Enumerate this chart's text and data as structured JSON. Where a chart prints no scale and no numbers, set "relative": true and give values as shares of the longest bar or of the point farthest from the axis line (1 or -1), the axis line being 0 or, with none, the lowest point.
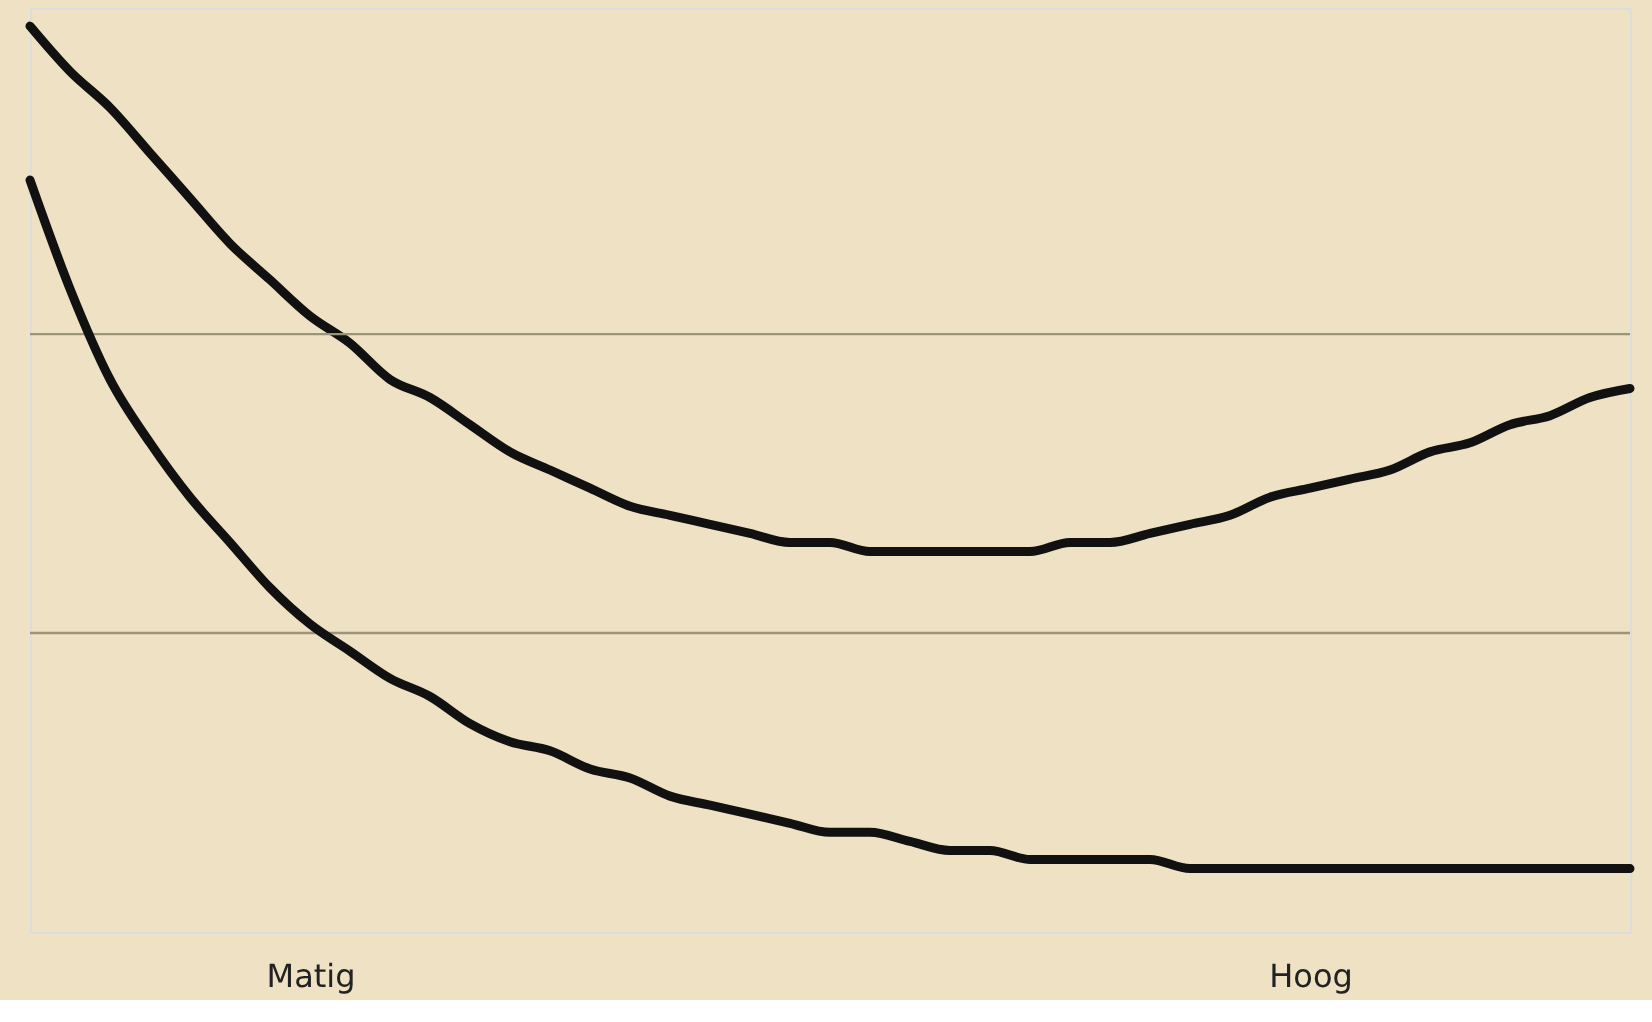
{
  "chart_data": {
    "type": "line",
    "relative": true,
    "marker": "none",
    "line_style": "solid",
    "ref_lines": [
      {
        "axis": "y",
        "value": 0.66,
        "color": "#9a9478"
      },
      {
        "axis": "y",
        "value": 0.33,
        "color": "#9a9478"
      }
    ],
    "categories": [
      null,
      null,
      null,
      null,
      null,
      null,
      null,
      "Matig",
      null,
      null,
      null,
      null,
      null,
      null,
      null,
      null,
      null,
      null,
      null,
      null,
      null,
      null,
      null,
      null,
      null,
      null,
      null,
      null,
      null,
      null,
      null,
      null,
      "Hoog",
      null,
      null,
      null,
      null,
      null,
      null,
      null,
      null
    ],
    "series": [
      {
        "color": "#111111",
        "values": [
          1.0,
          0.95,
          0.91,
          0.86,
          0.81,
          0.76,
          0.72,
          0.68,
          0.65,
          0.61,
          0.59,
          0.56,
          0.53,
          0.51,
          0.49,
          0.47,
          0.46,
          0.45,
          0.44,
          0.43,
          0.43,
          0.42,
          0.42,
          0.42,
          0.42,
          0.42,
          0.43,
          0.43,
          0.44,
          0.45,
          0.46,
          0.48,
          0.49,
          0.5,
          0.51,
          0.53,
          0.54,
          0.56,
          0.57,
          0.59,
          0.6
        ]
      },
      {
        "color": "#111111",
        "values": [
          0.83,
          0.71,
          0.61,
          0.54,
          0.48,
          0.43,
          0.38,
          0.34,
          0.31,
          0.28,
          0.26,
          0.23,
          0.21,
          0.2,
          0.18,
          0.17,
          0.15,
          0.14,
          0.13,
          0.12,
          0.11,
          0.11,
          0.1,
          0.09,
          0.09,
          0.08,
          0.08,
          0.08,
          0.08,
          0.07,
          0.07,
          0.07,
          0.07,
          0.07,
          0.07,
          0.07,
          0.07,
          0.07,
          0.07,
          0.07,
          0.07
        ]
      }
    ]
  }
}
